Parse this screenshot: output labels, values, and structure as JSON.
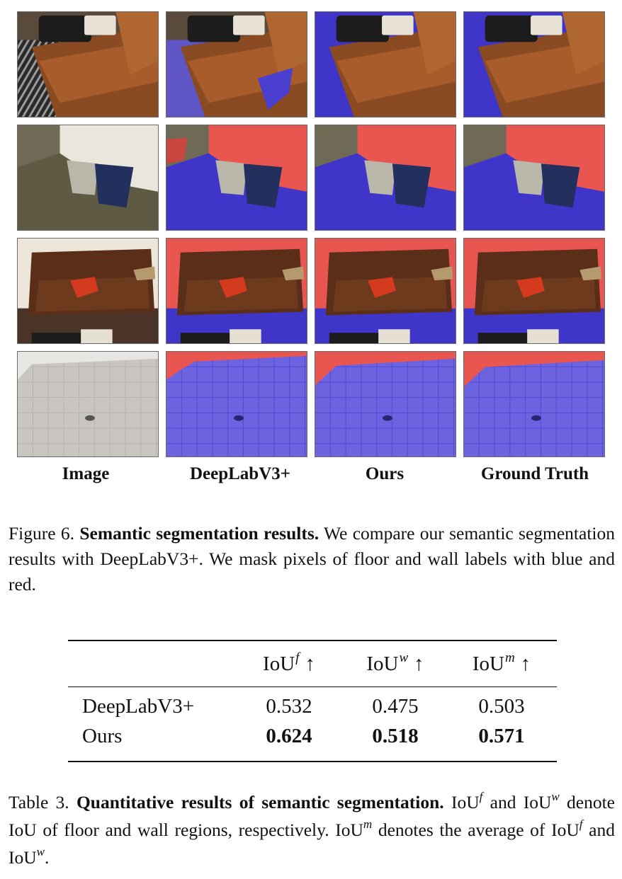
{
  "figure": {
    "columns": [
      "Image",
      "DeepLabV3+",
      "Ours",
      "Ground Truth"
    ],
    "rows": [
      "living-room-bag",
      "trash-bins",
      "brown-sofa",
      "tiled-floor"
    ],
    "mask_colors": {
      "floor": "#3b2fd6",
      "wall": "#e8564f"
    },
    "caption": {
      "label": "Figure 6.",
      "title": "Semantic segmentation results.",
      "text": "We compare our semantic segmentation results with DeepLabV3+. We mask pixels of floor and wall labels with blue and red."
    }
  },
  "table": {
    "headers": [
      {
        "base": "IoU",
        "sup": "f",
        "arrow": "↑"
      },
      {
        "base": "IoU",
        "sup": "w",
        "arrow": "↑"
      },
      {
        "base": "IoU",
        "sup": "m",
        "arrow": "↑"
      }
    ],
    "rows": [
      {
        "method": "DeepLabV3+",
        "values": [
          "0.532",
          "0.475",
          "0.503"
        ],
        "bold": false
      },
      {
        "method": "Ours",
        "values": [
          "0.624",
          "0.518",
          "0.571"
        ],
        "bold": true
      }
    ],
    "caption": {
      "label": "Table 3.",
      "title": "Quantitative results of semantic segmentation.",
      "t1": "IoU",
      "s1": "f",
      "t2": "and IoU",
      "s2": "w",
      "t3": "denote IoU of floor and wall regions, respectively. IoU",
      "s3": "m",
      "t4": "denotes the average of IoU",
      "s4": "f",
      "t5": "and IoU",
      "s5": "w",
      "t6": "."
    }
  }
}
